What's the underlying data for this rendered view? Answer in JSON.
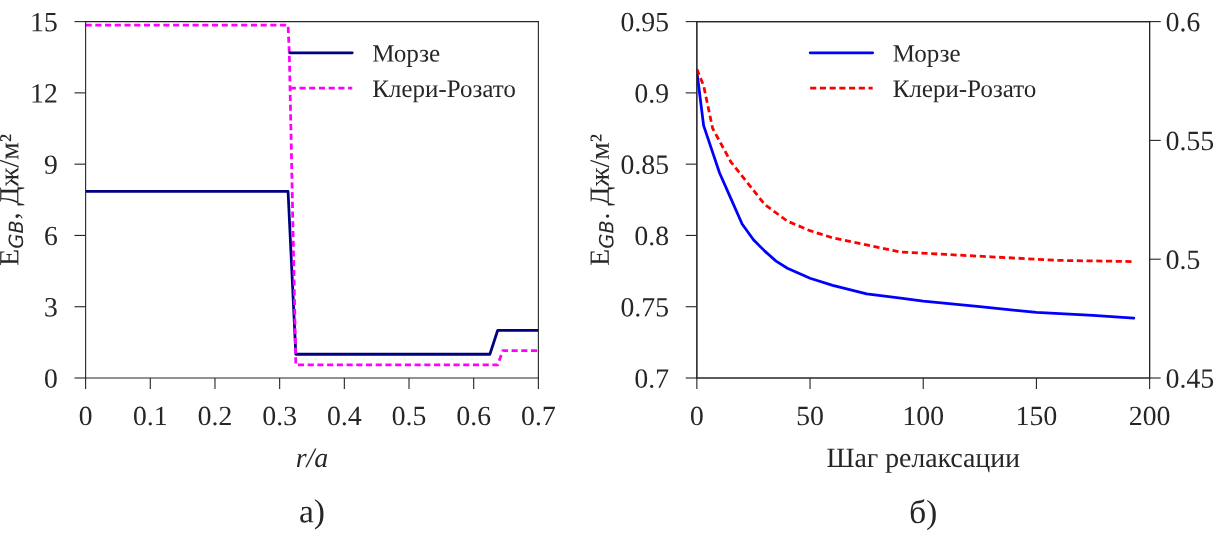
{
  "chart_data": [
    {
      "type": "line",
      "xlabel": "r/a",
      "ylabel": "E$_{GB}$, Дж/м²",
      "annotations": [
        "а)"
      ],
      "xlim": [
        0,
        0.7
      ],
      "xticks": [
        0,
        0.1,
        0.2,
        0.3,
        0.4,
        0.5,
        0.6,
        0.7
      ],
      "ylim": [
        0,
        15
      ],
      "yticks": [
        0,
        3,
        6,
        9,
        12,
        15
      ],
      "grid": false,
      "legend": "top right",
      "series": [
        {
          "name": "Морзе",
          "color": "#000080",
          "line_style": "solid",
          "x": [
            0,
            0.313,
            0.325,
            0.625,
            0.637,
            0.7
          ],
          "values": [
            7.85,
            7.85,
            1.0,
            1.0,
            2.0,
            2.0
          ]
        },
        {
          "name": "Клери-Розато",
          "color": "#ff00ff",
          "line_style": "dashed",
          "x": [
            0,
            0.313,
            0.315,
            0.325,
            0.637,
            0.645,
            0.7
          ],
          "values": [
            14.85,
            14.85,
            13.6,
            0.55,
            0.55,
            1.15,
            1.15
          ]
        }
      ]
    },
    {
      "type": "line",
      "xlabel": "Шаг релаксации",
      "ylabel": "E$_{GB}$. Дж/м²",
      "annotations": [
        "б)"
      ],
      "xlim": [
        0,
        200
      ],
      "xticks": [
        0,
        50,
        100,
        150,
        200
      ],
      "ylim": [
        0.7,
        0.95
      ],
      "yticks": [
        0.7,
        0.75,
        0.8,
        0.85,
        0.9,
        0.95
      ],
      "y2lim": [
        0.45,
        0.6
      ],
      "y2ticks": [
        0.45,
        0.5,
        0.55,
        0.6
      ],
      "grid": false,
      "legend": "top",
      "series": [
        {
          "name": "Морзе",
          "color": "#0000ff",
          "line_style": "solid",
          "x": [
            0,
            3,
            10,
            15,
            20,
            25,
            30,
            35,
            40,
            50,
            60,
            75,
            90,
            100,
            125,
            150,
            175,
            193
          ],
          "values": [
            0.915,
            0.877,
            0.844,
            0.826,
            0.808,
            0.797,
            0.789,
            0.782,
            0.777,
            0.77,
            0.765,
            0.759,
            0.756,
            0.754,
            0.75,
            0.746,
            0.744,
            0.742
          ]
        },
        {
          "name": "Клери-Розато",
          "color": "#ff0000",
          "line_style": "dashed",
          "axis": "y2",
          "x": [
            0,
            3,
            7,
            15,
            20,
            30,
            40,
            50,
            60,
            75,
            90,
            110,
            130,
            150,
            160,
            193
          ],
          "values": [
            0.58,
            0.573,
            0.555,
            0.541,
            0.535,
            0.523,
            0.516,
            0.512,
            0.509,
            0.506,
            0.503,
            0.502,
            0.501,
            0.5,
            0.4995,
            0.499
          ]
        }
      ]
    }
  ]
}
